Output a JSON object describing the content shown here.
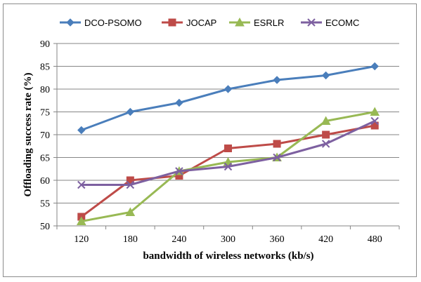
{
  "chart_data": {
    "type": "line",
    "title": "",
    "xlabel": "bandwidth of wireless networks (kb/s)",
    "ylabel": "Offloading success rate (%)",
    "categories": [
      "120",
      "180",
      "240",
      "300",
      "360",
      "420",
      "480"
    ],
    "ylim": [
      50,
      90
    ],
    "yticks": [
      50,
      55,
      60,
      65,
      70,
      75,
      80,
      85,
      90
    ],
    "grid": "horizontal",
    "legend_position": "top",
    "series": [
      {
        "name": "DCO-PSOMO",
        "color": "#4a7ebb",
        "marker": "diamond",
        "values": [
          71,
          75,
          77,
          80,
          82,
          83,
          85
        ]
      },
      {
        "name": "JOCAP",
        "color": "#be4b48",
        "marker": "square",
        "values": [
          52,
          60,
          61,
          67,
          68,
          70,
          72
        ]
      },
      {
        "name": "ESRLR",
        "color": "#98b954",
        "marker": "triangle",
        "values": [
          51,
          53,
          62,
          64,
          65,
          73,
          75
        ]
      },
      {
        "name": "ECOMC",
        "color": "#7d60a0",
        "marker": "x",
        "values": [
          59,
          59,
          62,
          63,
          65,
          68,
          73
        ]
      }
    ]
  }
}
